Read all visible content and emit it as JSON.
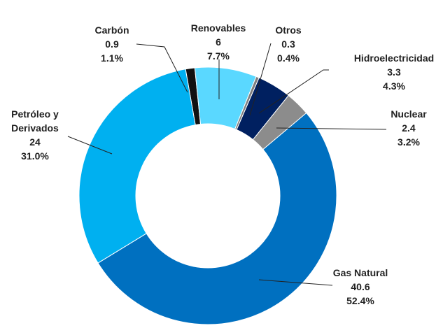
{
  "chart_data": {
    "type": "donut",
    "categories": [
      "Carbón",
      "Renovables",
      "Otros",
      "Hidroelectricidad",
      "Nuclear",
      "Gas Natural",
      "Petróleo y Derivados"
    ],
    "values": [
      0.9,
      6.0,
      0.3,
      3.3,
      2.4,
      40.6,
      24.0
    ],
    "percent_labels": [
      "1.1%",
      "7.7%",
      "0.4%",
      "4.3%",
      "3.2%",
      "52.4%",
      "31.0%"
    ],
    "colors": [
      "#111111",
      "#5ad8ff",
      "#7f7f7f",
      "#002060",
      "#8c8c8c",
      "#0070c0",
      "#00b0f0"
    ]
  }
}
